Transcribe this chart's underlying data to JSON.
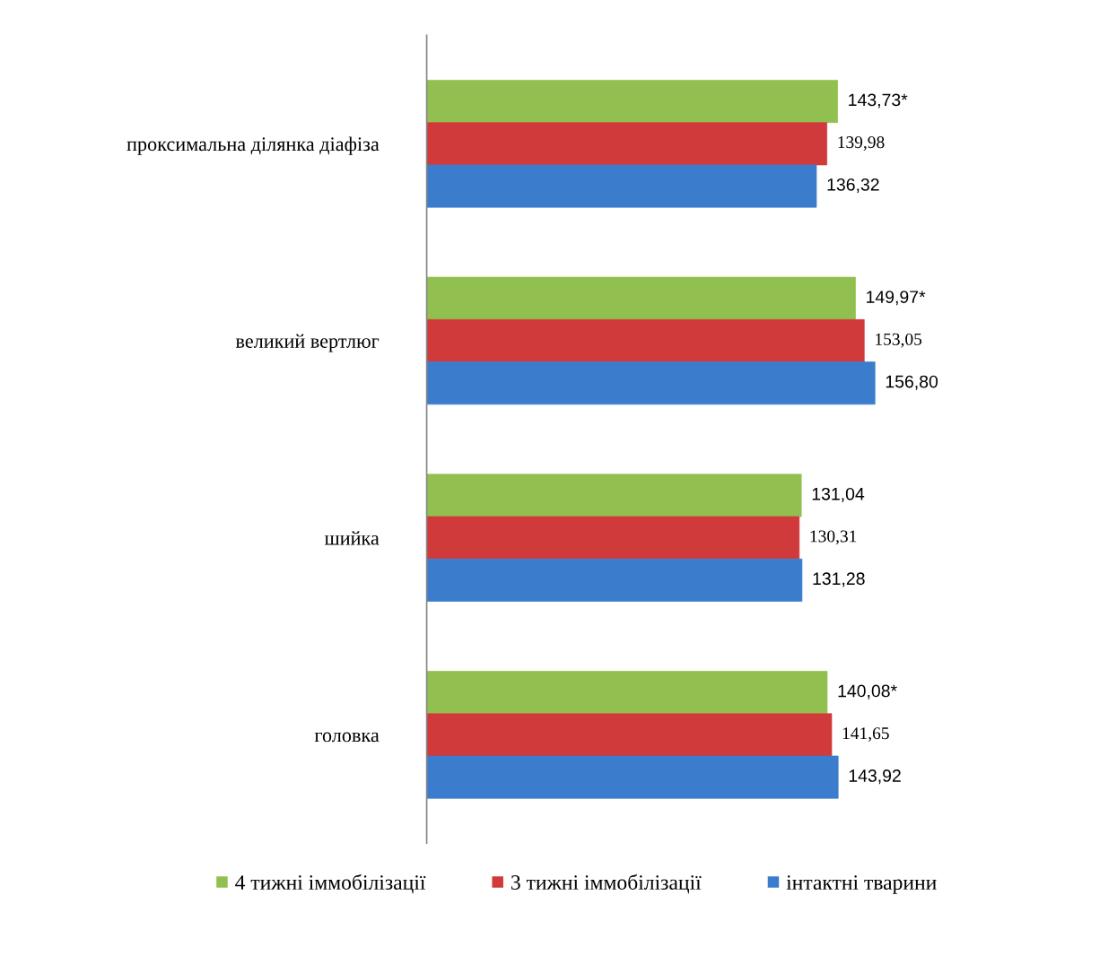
{
  "chart_data": {
    "type": "bar",
    "orientation": "horizontal",
    "categories": [
      "проксимальна ділянка діафіза",
      "великий вертлюг",
      "шийка",
      "головка"
    ],
    "series": [
      {
        "name": "4 тижні іммобілізації",
        "color": "#92c050",
        "values": [
          143.73,
          149.97,
          131.04,
          140.08
        ],
        "value_labels": [
          "143,73*",
          "149,97*",
          "131,04",
          "140,08*"
        ]
      },
      {
        "name": "3 тижні іммобілізації",
        "color": "#d03a3a",
        "values": [
          139.98,
          153.05,
          130.31,
          141.65
        ],
        "value_labels": [
          "139,98",
          "153,05",
          "130,31",
          "141,65"
        ]
      },
      {
        "name": "інтактні тварини",
        "color": "#3b7dcc",
        "values": [
          136.32,
          156.8,
          131.28,
          143.92
        ],
        "value_labels": [
          "136,32",
          "156,80",
          "131,28",
          "143,92"
        ]
      }
    ],
    "legend": "bottom",
    "tick_labels": "y"
  }
}
